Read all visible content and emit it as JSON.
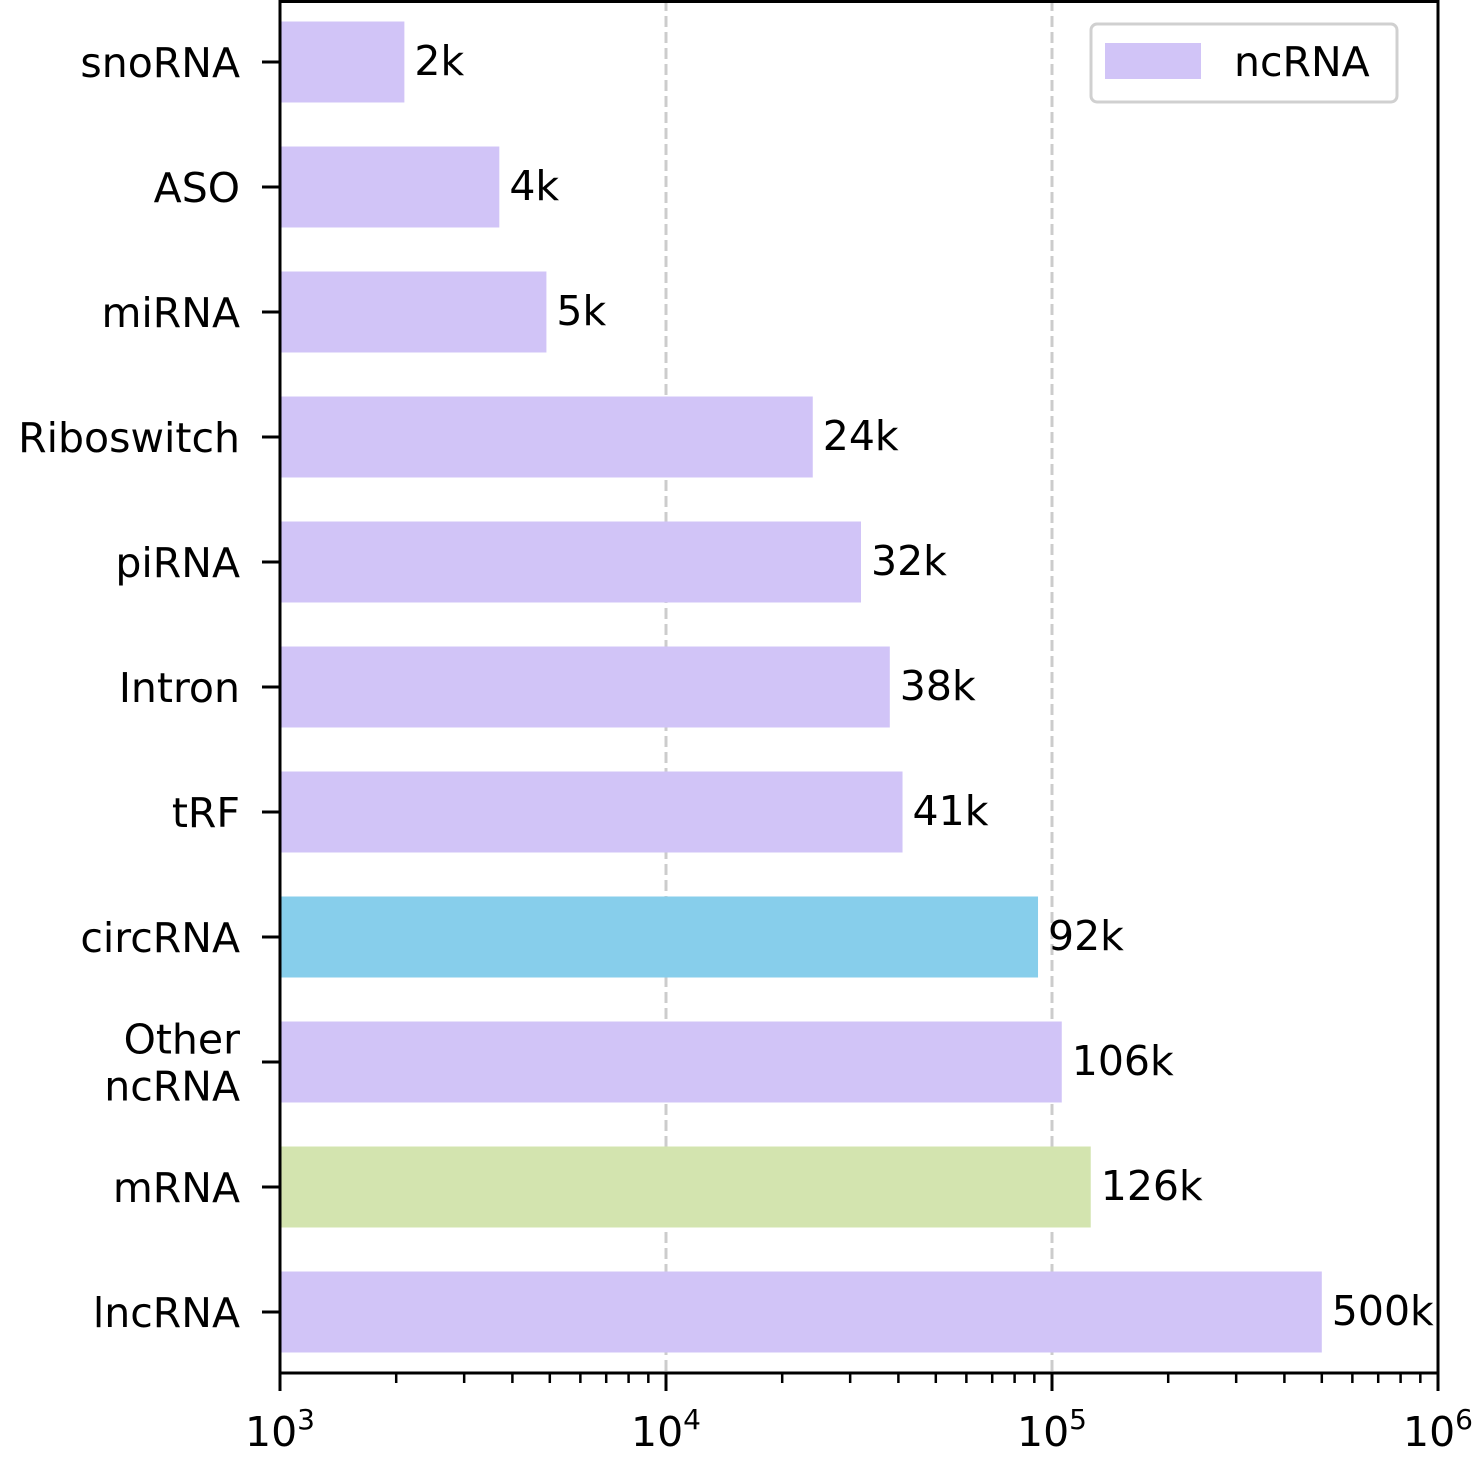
{
  "chart_data": {
    "type": "bar",
    "orientation": "horizontal",
    "x_scale": "log",
    "xlim": [
      1000,
      1000000
    ],
    "x_ticks": [
      {
        "base": "10",
        "exp": "3"
      },
      {
        "base": "10",
        "exp": "4"
      },
      {
        "base": "10",
        "exp": "5"
      },
      {
        "base": "10",
        "exp": "6"
      }
    ],
    "grid": "vertical dashed at major ticks",
    "legend": {
      "position": "top-right",
      "entries": [
        {
          "name": "ncRNA",
          "color": "#d1c4f7"
        }
      ]
    },
    "colors": {
      "ncRNA": "#d1c4f7",
      "circRNA": "#87ceeb",
      "mRNA": "#d3e4af"
    },
    "categories": [
      {
        "name": [
          "snoRNA"
        ],
        "value": 2100,
        "label": "2k",
        "color": "#d1c4f7"
      },
      {
        "name": [
          "ASO"
        ],
        "value": 3700,
        "label": "4k",
        "color": "#d1c4f7"
      },
      {
        "name": [
          "miRNA"
        ],
        "value": 4900,
        "label": "5k",
        "color": "#d1c4f7"
      },
      {
        "name": [
          "Riboswitch"
        ],
        "value": 24000,
        "label": "24k",
        "color": "#d1c4f7"
      },
      {
        "name": [
          "piRNA"
        ],
        "value": 32000,
        "label": "32k",
        "color": "#d1c4f7"
      },
      {
        "name": [
          "Intron"
        ],
        "value": 38000,
        "label": "38k",
        "color": "#d1c4f7"
      },
      {
        "name": [
          "tRF"
        ],
        "value": 41000,
        "label": "41k",
        "color": "#d1c4f7"
      },
      {
        "name": [
          "circRNA"
        ],
        "value": 92000,
        "label": "92k",
        "color": "#87ceeb"
      },
      {
        "name": [
          "Other",
          "ncRNA"
        ],
        "value": 106000,
        "label": "106k",
        "color": "#d1c4f7"
      },
      {
        "name": [
          "mRNA"
        ],
        "value": 126000,
        "label": "126k",
        "color": "#d3e4af"
      },
      {
        "name": [
          "lncRNA"
        ],
        "value": 500000,
        "label": "500k",
        "color": "#d1c4f7"
      }
    ]
  }
}
